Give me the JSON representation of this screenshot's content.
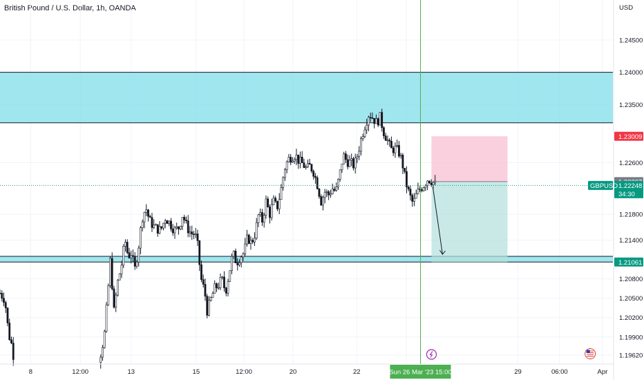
{
  "header": {
    "title": "British Pound / U.S. Dollar, 1h, OANDA"
  },
  "axis": {
    "currency": "USD"
  },
  "chart_data": {
    "type": "candlestick",
    "ylim": [
      1.1948,
      1.2512
    ],
    "y_ticks": [
      1.245,
      1.24,
      1.235,
      1.226,
      1.218,
      1.214,
      1.208,
      1.205,
      1.202,
      1.199,
      1.1962
    ],
    "y_tick_labels": [
      "1.24500",
      "1.24000",
      "1.23500",
      "1.22600",
      "1.21800",
      "1.21400",
      "1.20800",
      "1.20500",
      "1.20200",
      "1.19900",
      "1.19620"
    ],
    "x_ticks": [
      {
        "label": "8",
        "frac": 0.05
      },
      {
        "label": "12:00",
        "frac": 0.131
      },
      {
        "label": "13",
        "frac": 0.214
      },
      {
        "label": "15",
        "frac": 0.32
      },
      {
        "label": "12:00",
        "frac": 0.398
      },
      {
        "label": "20",
        "frac": 0.478
      },
      {
        "label": "22",
        "frac": 0.582
      },
      {
        "label": "12:00",
        "frac": 0.663
      },
      {
        "label": "29",
        "frac": 0.845
      },
      {
        "label": "06:00",
        "frac": 0.913
      },
      {
        "label": "Apr",
        "frac": 0.983
      }
    ],
    "price_path": [
      [
        0.0,
        1.2058
      ],
      [
        0.008,
        1.2048
      ],
      [
        0.014,
        1.1995
      ],
      [
        0.02,
        1.1975
      ],
      [
        0.024,
        1.1945
      ],
      [
        0.16,
        1.1945
      ],
      [
        0.165,
        1.1968
      ],
      [
        0.17,
        1.199
      ],
      [
        0.176,
        1.206
      ],
      [
        0.18,
        1.211
      ],
      [
        0.186,
        1.203
      ],
      [
        0.192,
        1.2075
      ],
      [
        0.198,
        1.21
      ],
      [
        0.204,
        1.214
      ],
      [
        0.209,
        1.2115
      ],
      [
        0.214,
        1.212
      ],
      [
        0.22,
        1.2095
      ],
      [
        0.226,
        1.213
      ],
      [
        0.232,
        1.2175
      ],
      [
        0.238,
        1.219
      ],
      [
        0.244,
        1.217
      ],
      [
        0.252,
        1.216
      ],
      [
        0.262,
        1.2155
      ],
      [
        0.27,
        1.2175
      ],
      [
        0.278,
        1.2165
      ],
      [
        0.285,
        1.2155
      ],
      [
        0.292,
        1.216
      ],
      [
        0.298,
        1.218
      ],
      [
        0.305,
        1.216
      ],
      [
        0.312,
        1.215
      ],
      [
        0.318,
        1.215
      ],
      [
        0.322,
        1.2135
      ],
      [
        0.328,
        1.208
      ],
      [
        0.334,
        1.206
      ],
      [
        0.338,
        1.203
      ],
      [
        0.344,
        1.2048
      ],
      [
        0.35,
        1.2065
      ],
      [
        0.356,
        1.207
      ],
      [
        0.362,
        1.208
      ],
      [
        0.368,
        1.206
      ],
      [
        0.374,
        1.209
      ],
      [
        0.38,
        1.212
      ],
      [
        0.386,
        1.2105
      ],
      [
        0.392,
        1.2115
      ],
      [
        0.398,
        1.212
      ],
      [
        0.404,
        1.2145
      ],
      [
        0.41,
        1.2135
      ],
      [
        0.416,
        1.215
      ],
      [
        0.422,
        1.218
      ],
      [
        0.428,
        1.217
      ],
      [
        0.434,
        1.22
      ],
      [
        0.44,
        1.218
      ],
      [
        0.446,
        1.22
      ],
      [
        0.452,
        1.219
      ],
      [
        0.458,
        1.2215
      ],
      [
        0.464,
        1.225
      ],
      [
        0.47,
        1.2265
      ],
      [
        0.476,
        1.227
      ],
      [
        0.482,
        1.2272
      ],
      [
        0.488,
        1.2262
      ],
      [
        0.494,
        1.2258
      ],
      [
        0.5,
        1.225
      ],
      [
        0.506,
        1.2255
      ],
      [
        0.512,
        1.2245
      ],
      [
        0.518,
        1.2225
      ],
      [
        0.524,
        1.22
      ],
      [
        0.53,
        1.2215
      ],
      [
        0.536,
        1.221
      ],
      [
        0.542,
        1.222
      ],
      [
        0.548,
        1.2215
      ],
      [
        0.554,
        1.224
      ],
      [
        0.56,
        1.2272
      ],
      [
        0.566,
        1.2262
      ],
      [
        0.572,
        1.226
      ],
      [
        0.578,
        1.2255
      ],
      [
        0.584,
        1.2275
      ],
      [
        0.59,
        1.23
      ],
      [
        0.596,
        1.232
      ],
      [
        0.602,
        1.2336
      ],
      [
        0.608,
        1.233
      ],
      [
        0.614,
        1.2322
      ],
      [
        0.62,
        1.233
      ],
      [
        0.626,
        1.2308
      ],
      [
        0.632,
        1.2295
      ],
      [
        0.638,
        1.228
      ],
      [
        0.644,
        1.2282
      ],
      [
        0.65,
        1.2278
      ],
      [
        0.656,
        1.2262
      ],
      [
        0.662,
        1.223
      ],
      [
        0.668,
        1.221
      ],
      [
        0.674,
        1.2196
      ],
      [
        0.68,
        1.2212
      ],
      [
        0.686,
        1.222
      ],
      [
        0.692,
        1.2226
      ],
      [
        0.698,
        1.2235
      ],
      [
        0.704,
        1.2232
      ],
      [
        0.71,
        1.2226
      ]
    ],
    "zones": [
      {
        "name": "resistance-zone",
        "y0": 1.23218,
        "y1": 1.24,
        "color": "#80deea"
      },
      {
        "name": "support-zone",
        "y0": 1.21061,
        "y1": 1.2115,
        "color": "#80deea"
      }
    ],
    "position": {
      "entry": 1.22307,
      "stop": 1.23009,
      "target": 1.21061,
      "x_start_frac": 0.704,
      "x_end_frac": 0.828,
      "stop_color": "#f8bbd0",
      "target_color": "#b2dfdb"
    },
    "crosshair": {
      "x_frac": 0.686,
      "label": "Sun 26 Mar '23   15:00"
    },
    "current_price": {
      "symbol": "GBPUSD",
      "value": "1.22248",
      "countdown": "34:30",
      "price": 1.22248
    },
    "price_labels": [
      {
        "value": "1.23009",
        "price": 1.23009,
        "color": "#f23645"
      },
      {
        "value": "1.22307",
        "price": 1.22307,
        "color": "#787b86"
      },
      {
        "value": "1.21061",
        "price": 1.21061,
        "color": "#089981"
      }
    ],
    "colors": {
      "accent": "#4caf50",
      "grid": "#f0f3fa",
      "candle": "#131722"
    }
  }
}
